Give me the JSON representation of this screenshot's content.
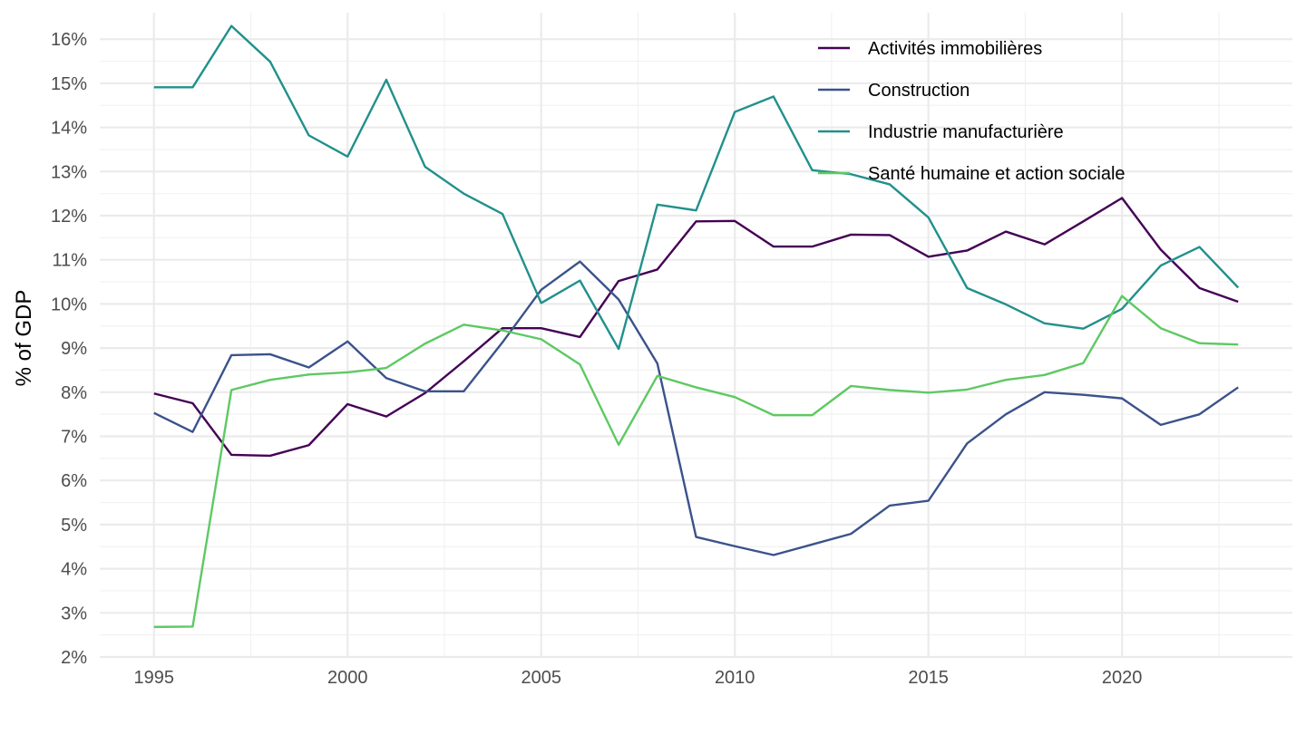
{
  "chart_data": {
    "type": "line",
    "title": "",
    "xlabel": "",
    "ylabel": "% of GDP",
    "xlim": [
      1993.6,
      2024.4
    ],
    "ylim": [
      2.0,
      16.6
    ],
    "x_ticks": [
      1995,
      2000,
      2005,
      2010,
      2015,
      2020
    ],
    "x_tick_labels": [
      "1995",
      "2000",
      "2005",
      "2010",
      "2015",
      "2020"
    ],
    "y_ticks": [
      2,
      3,
      4,
      5,
      6,
      7,
      8,
      9,
      10,
      11,
      12,
      13,
      14,
      15,
      16
    ],
    "y_tick_labels": [
      "2%",
      "3%",
      "4%",
      "5%",
      "6%",
      "7%",
      "8%",
      "9%",
      "10%",
      "11%",
      "12%",
      "13%",
      "14%",
      "15%",
      "16%"
    ],
    "grid": true,
    "legend_position": "top-right",
    "x": [
      1995,
      1996,
      1997,
      1998,
      1999,
      2000,
      2001,
      2002,
      2003,
      2004,
      2005,
      2006,
      2007,
      2008,
      2009,
      2010,
      2011,
      2012,
      2013,
      2014,
      2015,
      2016,
      2017,
      2018,
      2019,
      2020,
      2021,
      2022,
      2023
    ],
    "series": [
      {
        "name": "Activités immobilières",
        "color": "#440154",
        "values": [
          7.97,
          7.75,
          6.58,
          6.56,
          6.8,
          7.73,
          7.45,
          7.98,
          8.7,
          9.45,
          9.45,
          9.25,
          10.52,
          10.78,
          11.87,
          11.88,
          11.3,
          11.3,
          11.57,
          11.56,
          11.07,
          11.21,
          11.64,
          11.35,
          11.87,
          12.4,
          11.23,
          10.36,
          10.05
        ]
      },
      {
        "name": "Construction",
        "color": "#3b528b",
        "values": [
          7.53,
          7.1,
          8.84,
          8.86,
          8.56,
          9.15,
          8.32,
          8.02,
          8.02,
          9.13,
          10.32,
          10.96,
          10.1,
          8.65,
          4.72,
          4.51,
          4.31,
          4.55,
          4.79,
          5.43,
          5.54,
          6.84,
          7.5,
          8.0,
          7.94,
          7.86,
          7.26,
          7.5,
          8.11
        ]
      },
      {
        "name": "Industrie manufacturière",
        "color": "#21908c",
        "values": [
          14.91,
          14.91,
          16.3,
          15.49,
          13.82,
          13.34,
          15.08,
          13.11,
          12.5,
          12.04,
          10.02,
          10.53,
          8.98,
          12.25,
          12.12,
          14.35,
          14.7,
          13.03,
          12.94,
          12.71,
          11.96,
          10.36,
          9.99,
          9.56,
          9.44,
          9.89,
          10.87,
          11.29,
          10.37
        ]
      },
      {
        "name": "Santé humaine et action sociale",
        "color": "#5ec962",
        "values": [
          2.68,
          2.69,
          8.05,
          8.28,
          8.4,
          8.45,
          8.55,
          9.1,
          9.53,
          9.4,
          9.2,
          8.63,
          6.81,
          8.37,
          8.11,
          7.89,
          7.48,
          7.48,
          8.14,
          8.05,
          7.99,
          8.06,
          8.28,
          8.39,
          8.66,
          10.18,
          9.45,
          9.11,
          9.08
        ]
      }
    ]
  }
}
